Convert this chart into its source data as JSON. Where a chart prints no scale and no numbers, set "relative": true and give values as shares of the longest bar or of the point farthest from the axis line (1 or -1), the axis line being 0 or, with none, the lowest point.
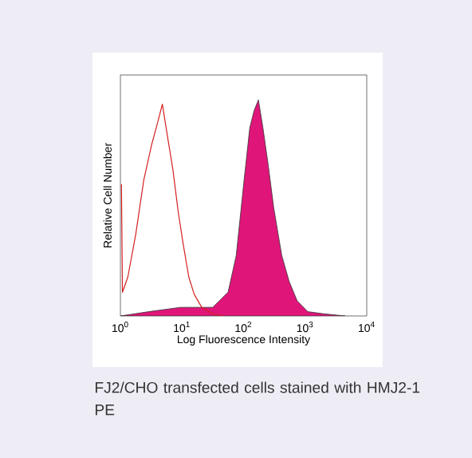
{
  "chart_data": {
    "type": "area",
    "relative": true,
    "xlabel": "Log Fluorescence Intensity",
    "ylabel": "Relative Cell Number",
    "log": "x",
    "xlim": [
      1,
      10000
    ],
    "xticks": [
      {
        "value": 1,
        "label": "10$^{0}$"
      },
      {
        "value": 10,
        "label": "10$^{1}$"
      },
      {
        "value": 100,
        "label": "10$^{2}$"
      },
      {
        "value": 1000,
        "label": "10$^{3}$"
      },
      {
        "value": 10000,
        "label": "10$^{4}$"
      }
    ],
    "grid": false,
    "series": [
      {
        "type": "line",
        "color": "#d42020",
        "x": [
          1.04,
          1.08,
          1.32,
          1.78,
          2.4,
          3.2,
          3.9,
          4.8,
          5.9,
          7.1,
          8.7,
          10.5,
          12.9,
          15.8,
          20.9,
          31.6,
          46.8
        ],
        "values": [
          0.61,
          0.11,
          0.18,
          0.38,
          0.63,
          0.79,
          0.88,
          0.98,
          0.82,
          0.68,
          0.48,
          0.33,
          0.18,
          0.1,
          0.04,
          0.01,
          0
        ]
      },
      {
        "color": "#e0157a",
        "x": [
          1,
          2.9,
          9.5,
          31.6,
          56,
          76,
          102,
          126,
          148,
          174,
          204,
          251,
          309,
          417,
          550,
          741,
          1100,
          2000,
          4470
        ],
        "values": [
          0,
          0.02,
          0.04,
          0.04,
          0.11,
          0.28,
          0.63,
          0.87,
          0.95,
          1.0,
          0.88,
          0.7,
          0.5,
          0.28,
          0.16,
          0.07,
          0.02,
          0.01,
          0
        ]
      }
    ],
    "annotations": [
      "FJ2/CHO transfected cells stained with HMJ2-1 PE"
    ]
  }
}
